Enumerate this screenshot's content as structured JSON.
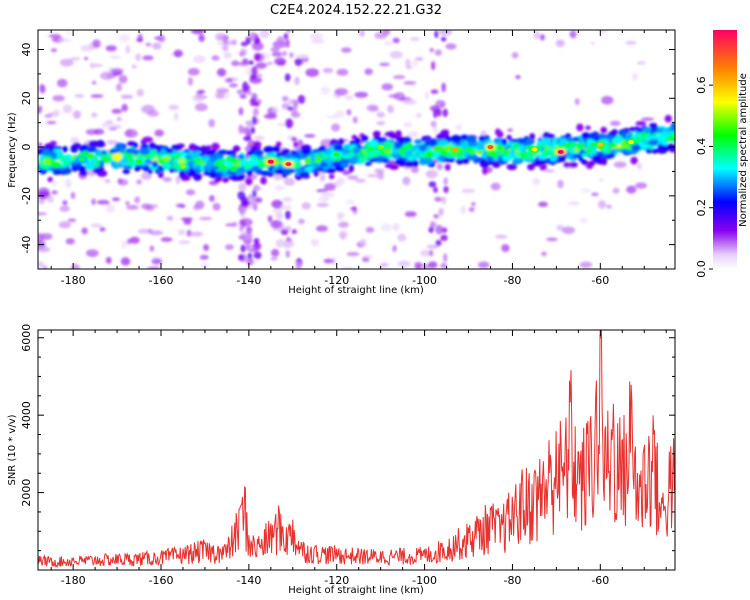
{
  "title": "C2E4.2024.152.22.21.G32",
  "chart_data": [
    {
      "type": "heatmap",
      "xlabel": "Height of straight line (km)",
      "ylabel": "Frequency (Hz)",
      "xlim": [
        -188,
        -43
      ],
      "ylim": [
        -50,
        48
      ],
      "x_ticks": [
        -180,
        -160,
        -140,
        -120,
        -100,
        -80,
        -60
      ],
      "y_ticks": [
        -40,
        -20,
        0,
        20,
        40
      ],
      "colorbar": {
        "label": "Normalized spectral amplitude",
        "range": [
          0.0,
          0.78
        ],
        "ticks": [
          0.0,
          0.2,
          0.4,
          0.6
        ]
      },
      "ridge": {
        "x": [
          -188,
          -180,
          -170,
          -160,
          -150,
          -140,
          -135,
          -130,
          -120,
          -110,
          -100,
          -95,
          -90,
          -80,
          -70,
          -60,
          -50,
          -43
        ],
        "y": [
          -6,
          -5,
          -4,
          -5,
          -7,
          -7,
          -6,
          -7,
          -4,
          -1,
          -2,
          -1,
          -1,
          -2,
          -1,
          0,
          3,
          5
        ]
      },
      "hotspots": [
        {
          "x": -135,
          "y": -6,
          "value": 0.78
        },
        {
          "x": -131,
          "y": -7,
          "value": 0.75
        },
        {
          "x": -93,
          "y": -1,
          "value": 0.62
        },
        {
          "x": -85,
          "y": 0,
          "value": 0.7
        },
        {
          "x": -69,
          "y": -2,
          "value": 0.78
        },
        {
          "x": -53,
          "y": 2,
          "value": 0.55
        },
        {
          "x": -178,
          "y": -5,
          "value": 0.4
        },
        {
          "x": -165,
          "y": -6,
          "value": 0.45
        },
        {
          "x": -155,
          "y": -8,
          "value": 0.5
        },
        {
          "x": -120,
          "y": -3,
          "value": 0.45
        },
        {
          "x": -110,
          "y": 0,
          "value": 0.5
        },
        {
          "x": -75,
          "y": -1,
          "value": 0.55
        },
        {
          "x": -60,
          "y": 1,
          "value": 0.6
        }
      ]
    },
    {
      "type": "line",
      "xlabel": "Height of straight line (km)",
      "ylabel": "SNR (10 * v/v)",
      "xlim": [
        -188,
        -43
      ],
      "ylim": [
        0,
        6200
      ],
      "x_ticks": [
        -180,
        -160,
        -140,
        -120,
        -100,
        -80,
        -60
      ],
      "y_ticks": [
        2000,
        4000,
        6000
      ],
      "series": [
        {
          "color": "#e8312e",
          "x": [
            -188,
            -185,
            -180,
            -175,
            -170,
            -165,
            -160,
            -155,
            -150,
            -147,
            -145,
            -142,
            -141,
            -140,
            -138,
            -135,
            -133,
            -131,
            -130,
            -128,
            -125,
            -120,
            -115,
            -110,
            -105,
            -100,
            -96,
            -93,
            -90,
            -88,
            -85,
            -83,
            -80,
            -78,
            -75,
            -73,
            -70,
            -68,
            -67,
            -65,
            -63,
            -61,
            -60,
            -59,
            -57,
            -55,
            -53,
            -51,
            -50,
            -48,
            -46,
            -44,
            -43
          ],
          "y": [
            350,
            300,
            320,
            350,
            380,
            400,
            450,
            550,
            700,
            600,
            650,
            1600,
            2200,
            900,
            800,
            1200,
            1500,
            1100,
            1300,
            700,
            600,
            550,
            500,
            480,
            500,
            520,
            700,
            900,
            1100,
            1300,
            1600,
            1400,
            1900,
            2300,
            2500,
            2800,
            3600,
            3300,
            4900,
            3000,
            3500,
            4500,
            6200,
            3600,
            4300,
            3300,
            4800,
            2400,
            3200,
            4000,
            1800,
            3200,
            3100
          ]
        }
      ]
    }
  ]
}
